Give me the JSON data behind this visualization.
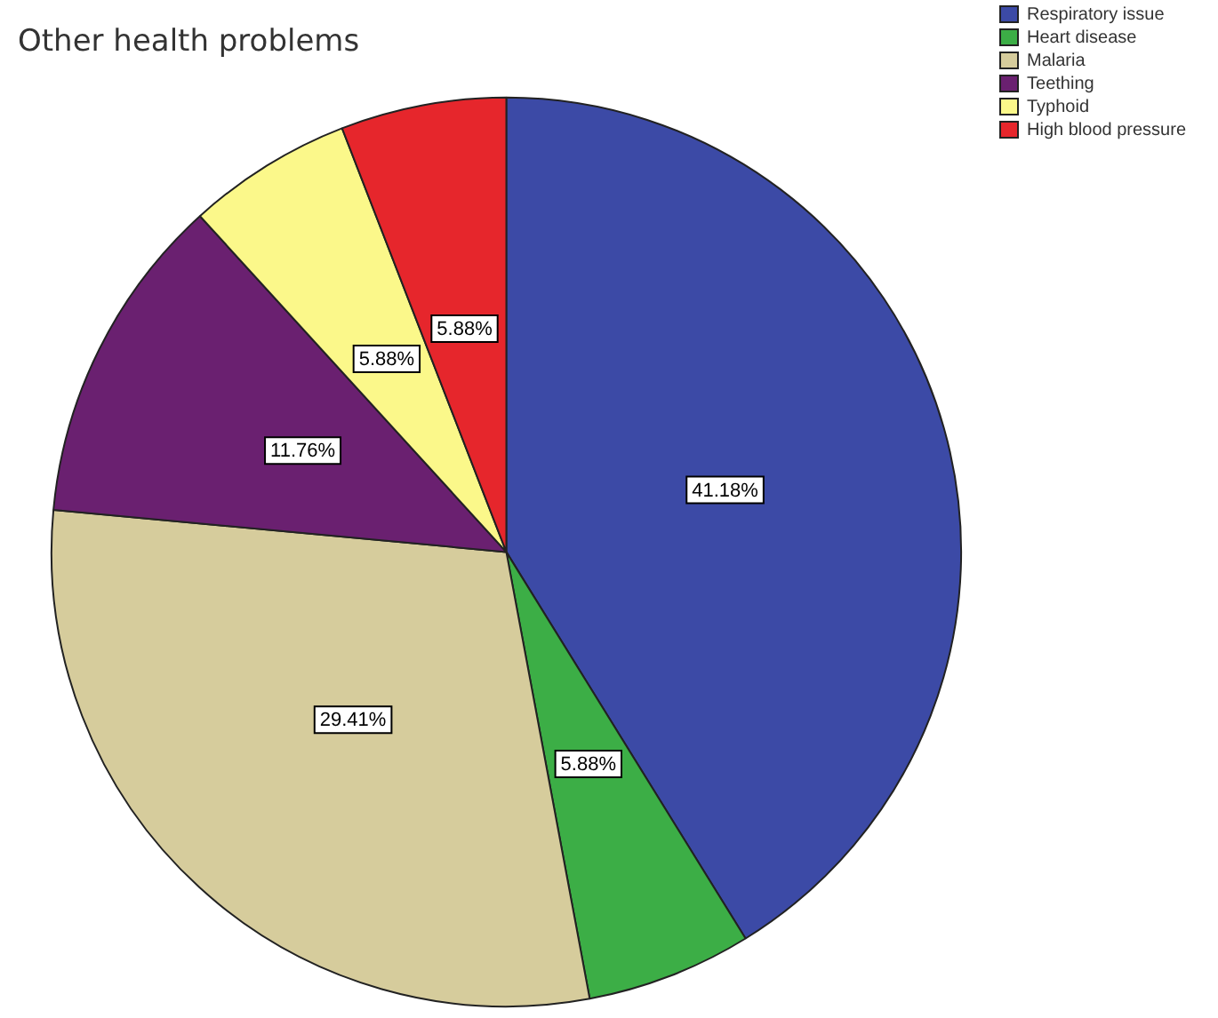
{
  "chart_data": {
    "type": "pie",
    "title": "Other health problems",
    "categories": [
      "Respiratory issue",
      "Heart disease",
      "Malaria",
      "Teething",
      "Typhoid",
      "High blood pressure"
    ],
    "values": [
      41.18,
      5.88,
      29.41,
      11.76,
      5.88,
      5.88
    ],
    "colors": [
      "#3c4aa6",
      "#3cae46",
      "#d6cc9c",
      "#6a2070",
      "#fbf88a",
      "#e6262c"
    ],
    "value_labels": [
      "41.18%",
      "5.88%",
      "29.41%",
      "11.76%",
      "5.88%",
      "5.88%"
    ],
    "legend": "top right"
  }
}
